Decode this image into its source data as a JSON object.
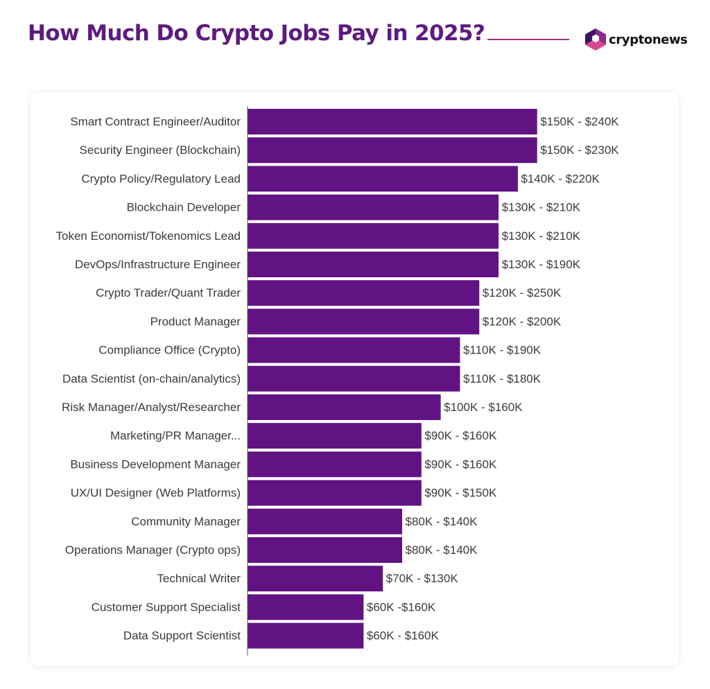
{
  "header": {
    "title": "How Much Do Crypto Jobs Pay in 2025?",
    "logo_text": "cryptonews"
  },
  "colors": {
    "title": "#5E1A80",
    "bar": "#611383",
    "rule": "#A02D80",
    "logo_dark": "#3E1262",
    "logo_mid": "#8E2C8C",
    "logo_light": "#D6498A",
    "label": "#3A3A3A",
    "axis": "#5A5A5A"
  },
  "chart_data": {
    "type": "bar",
    "orientation": "horizontal",
    "title": "",
    "xlabel": "",
    "ylabel": "",
    "x_unit": "thousand USD (low end of salary range)",
    "xlim": [
      0,
      160
    ],
    "grid": false,
    "legend": "none",
    "categories": [
      "Smart Contract Engineer/Auditor",
      "Security Engineer (Blockchain)",
      "Crypto Policy/Regulatory Lead",
      "Blockchain Developer",
      "Token Economist/Tokenomics Lead",
      "DevOps/Infrastructure Engineer",
      "Crypto Trader/Quant Trader",
      "Product Manager",
      "Compliance Office (Crypto)",
      "Data Scientist (on-chain/analytics)",
      "Risk Manager/Analyst/Researcher",
      "Marketing/PR Manager...",
      "Business Development Manager",
      "UX/UI Designer (Web Platforms)",
      "Community Manager",
      "Operations Manager (Crypto ops)",
      "Technical Writer",
      "Customer Support Specialist",
      "Data Support Scientist"
    ],
    "values": [
      150,
      150,
      140,
      130,
      130,
      130,
      120,
      120,
      110,
      110,
      100,
      90,
      90,
      90,
      80,
      80,
      70,
      60,
      60
    ],
    "data_labels": [
      "$150K - $240K",
      "$150K - $230K",
      "$140K - $220K",
      "$130K - $210K",
      "$130K - $210K",
      "$130K - $190K",
      "$120K - $250K",
      "$120K - $200K",
      "$110K - $190K",
      "$110K - $180K",
      "$100K - $160K",
      "$90K - $160K",
      "$90K - $160K",
      "$90K - $150K",
      "$80K - $140K",
      "$80K - $140K",
      "$70K - $130K",
      "$60K -$160K",
      "$60K - $160K"
    ]
  }
}
